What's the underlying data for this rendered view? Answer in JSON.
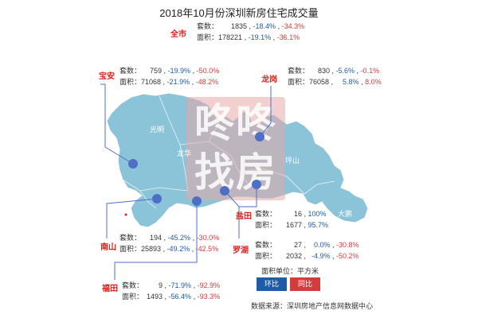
{
  "title": "2018年10月份深圳新房住宅成交量",
  "labels": {
    "count": "套数：",
    "area": "面积："
  },
  "unit_label": "面积单位：平方米",
  "legend": {
    "mom": "环比",
    "yoy": "同比",
    "mom_color": "#1e5ba8",
    "yoy_color": "#d23c3c"
  },
  "source": "数据来源：深圳房地产信息网数据中心",
  "watermark": {
    "line1": "咚咚",
    "line2": "找房"
  },
  "map_labels": [
    {
      "key": "guangming",
      "text": "光明"
    },
    {
      "key": "longhua",
      "text": "龙华"
    },
    {
      "key": "pingshan",
      "text": "坪山"
    },
    {
      "key": "dapeng",
      "text": "大鹏"
    }
  ],
  "colors": {
    "map": "#8bc4d8",
    "dot": "#4f6fc7",
    "district_name": "#e0201b",
    "mom": "#1e5ba8",
    "yoy": "#d23c3c"
  },
  "chart_data": {
    "type": "table",
    "title": "2018年10月份深圳新房住宅成交量",
    "columns": [
      "district",
      "count",
      "count_mom",
      "count_yoy",
      "area",
      "area_mom",
      "area_yoy"
    ],
    "rows": [
      {
        "district": "全市",
        "count": "1835",
        "count_mom": "-18.4%",
        "count_yoy": "-34.3%",
        "area": "178221",
        "area_mom": "-19.1%",
        "area_yoy": "-36.1%"
      },
      {
        "district": "宝安",
        "count": "759",
        "count_mom": "-19.9%",
        "count_yoy": "-50.0%",
        "area": "71068",
        "area_mom": "-21.9%",
        "area_yoy": "-48.2%"
      },
      {
        "district": "龙岗",
        "count": "830",
        "count_mom": "-5.6%",
        "count_yoy": "-0.1%",
        "area": "76058",
        "area_mom": "5.8%",
        "area_yoy": "8.0%"
      },
      {
        "district": "南山",
        "count": "194",
        "count_mom": "-45.2%",
        "count_yoy": "-30.0%",
        "area": "25893",
        "area_mom": "-49.2%",
        "area_yoy": "-42.5%"
      },
      {
        "district": "福田",
        "count": "9",
        "count_mom": "-71.9%",
        "count_yoy": "-92.9%",
        "area": "1493",
        "area_mom": "-56.4%",
        "area_yoy": "-93.3%"
      },
      {
        "district": "盐田",
        "count": "16",
        "count_mom": "100%",
        "count_yoy": "",
        "area": "1677",
        "area_mom": "95.7%",
        "area_yoy": ""
      },
      {
        "district": "罗湖",
        "count": "27",
        "count_mom": "0.0%",
        "count_yoy": "-30.8%",
        "area": "2032",
        "area_mom": "-4.9%",
        "area_yoy": "-50.2%"
      }
    ]
  }
}
